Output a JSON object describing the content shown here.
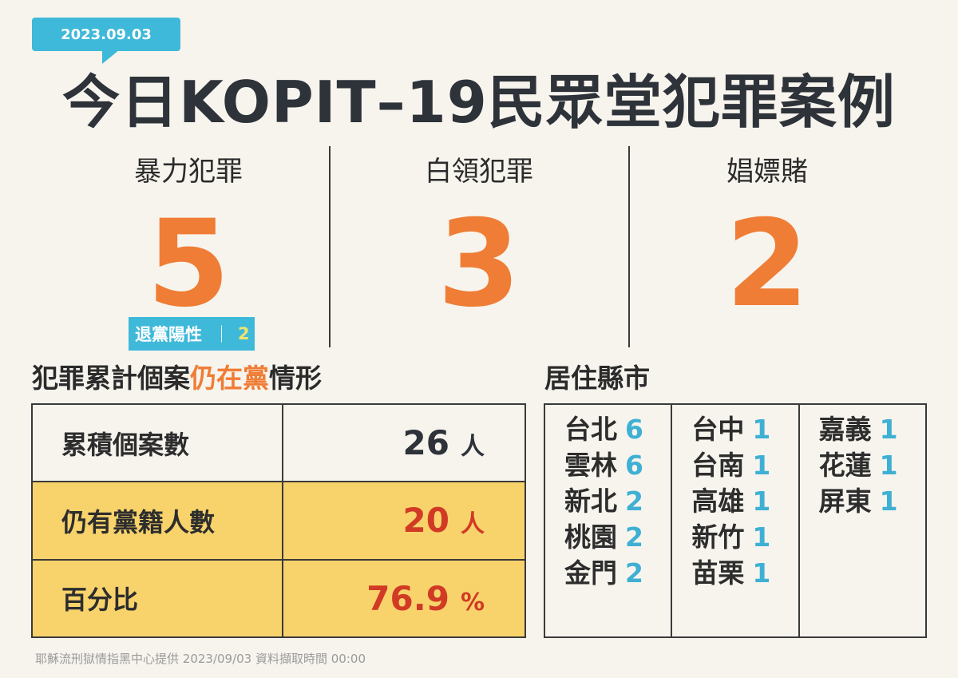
{
  "date_badge": "2023.09.03",
  "title": "今日KOPIT–19民眾堂犯罪案例",
  "categories": [
    {
      "label": "暴力犯罪",
      "count": "5"
    },
    {
      "label": "白領犯罪",
      "count": "3"
    },
    {
      "label": "娼嫖賭",
      "count": "2"
    }
  ],
  "sub_badge": {
    "label": "退黨陽性",
    "separator": "｜",
    "value": "2"
  },
  "stats_section": {
    "title_part1": "犯罪累計個案",
    "title_highlight": "仍在黨",
    "title_part2": "情形"
  },
  "stats": [
    {
      "label": "累積個案數",
      "value": "26",
      "unit": "人"
    },
    {
      "label": "仍有黨籍人數",
      "value": "20",
      "unit": "人"
    },
    {
      "label": "百分比",
      "value": "76.9",
      "unit": "%"
    }
  ],
  "residence_section": {
    "title": "居住縣市"
  },
  "residence": [
    [
      {
        "city": "台北",
        "count": "6"
      },
      {
        "city": "雲林",
        "count": "6"
      },
      {
        "city": "新北",
        "count": "2"
      },
      {
        "city": "桃園",
        "count": "2"
      },
      {
        "city": "金門",
        "count": "2"
      }
    ],
    [
      {
        "city": "台中",
        "count": "1"
      },
      {
        "city": "台南",
        "count": "1"
      },
      {
        "city": "高雄",
        "count": "1"
      },
      {
        "city": "新竹",
        "count": "1"
      },
      {
        "city": "苗栗",
        "count": "1"
      }
    ],
    [
      {
        "city": "嘉義",
        "count": "1"
      },
      {
        "city": "花蓮",
        "count": "1"
      },
      {
        "city": "屏東",
        "count": "1"
      }
    ]
  ],
  "footer": "耶穌流刑獄情指黑中心提供 2023/09/03 資料擷取時間 00:00",
  "colors": {
    "accent_blue": "#3fb9d9",
    "accent_orange": "#ef7d35",
    "highlight_yellow": "#f8d36c",
    "value_red": "#d13a25"
  }
}
